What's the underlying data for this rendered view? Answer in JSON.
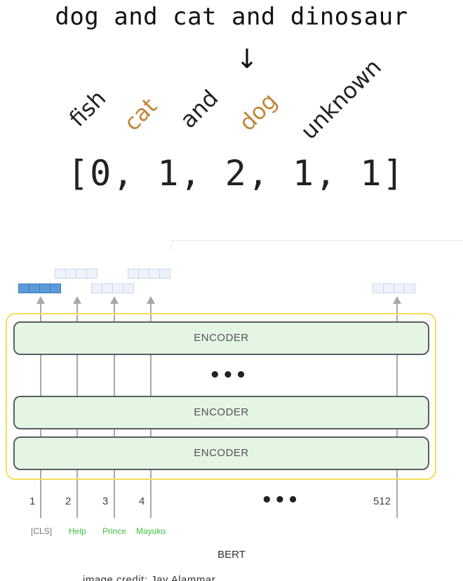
{
  "top": {
    "sentence": "dog and cat and dinosaur",
    "arrow": "↓",
    "vocab": [
      {
        "word": "fish",
        "highlight": false
      },
      {
        "word": "cat",
        "highlight": true
      },
      {
        "word": "and",
        "highlight": false
      },
      {
        "word": "dog",
        "highlight": true
      },
      {
        "word": "unknown",
        "highlight": false
      }
    ],
    "ids": "[0, 1, 2, 1, 1]",
    "highlight_color": "#c0883a"
  },
  "bert": {
    "encoders": [
      "ENCODER",
      "ENCODER",
      "ENCODER"
    ],
    "ellipsis_mid": "•••",
    "ellipsis_positions": "•••",
    "positions": [
      "1",
      "2",
      "3",
      "4",
      "512"
    ],
    "tokens": [
      {
        "text": "[CLS]",
        "style": "cls"
      },
      {
        "text": "Help",
        "style": "green"
      },
      {
        "text": "Prince",
        "style": "green"
      },
      {
        "text": "Mayuko",
        "style": "green"
      }
    ],
    "label": "BERT",
    "caption": "image credit: Jay Alammar",
    "encoder_fill": "#e4f5e4",
    "frame_color": "#f4df5a",
    "vector_fill": "#5b9ad9",
    "token_green": "#3cc23c"
  }
}
